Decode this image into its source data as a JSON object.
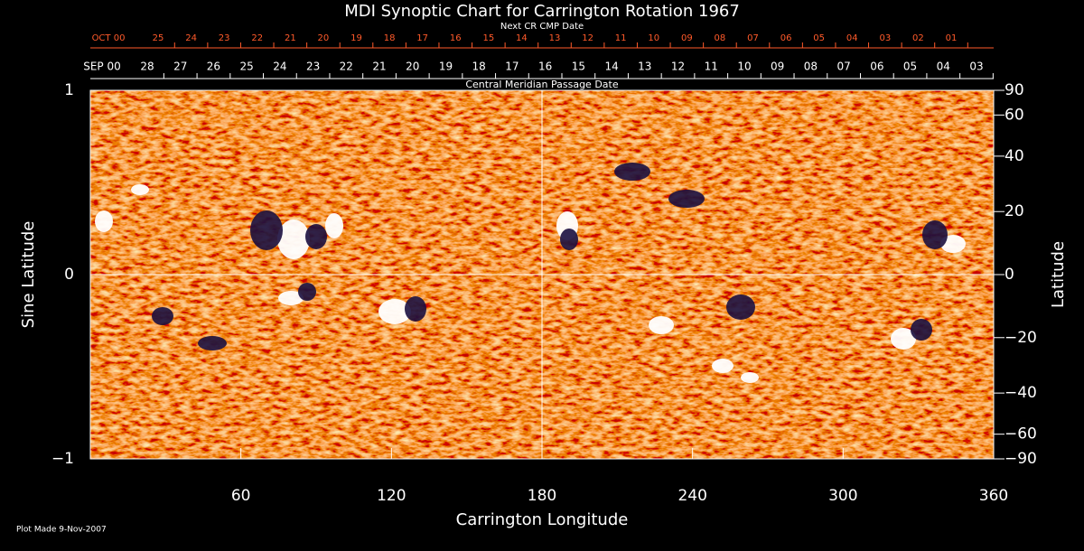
{
  "chart_data": {
    "type": "synoptic-map",
    "title": "MDI Synoptic Chart for Carrington Rotation 1967",
    "xlabel": "Carrington Longitude",
    "ylabel": "Sine Latitude",
    "y2label": "Latitude",
    "xlim": [
      0,
      360
    ],
    "xticks": [
      60,
      120,
      180,
      240,
      300,
      360
    ],
    "ylim": [
      -1,
      1
    ],
    "yticks": [
      -1,
      0,
      1
    ],
    "y2scale": "sine",
    "y2ticks": [
      90,
      60,
      40,
      20,
      0,
      -20,
      -40,
      -60,
      -90
    ],
    "reference_lines": {
      "x": 180,
      "y": 0
    },
    "top_axis": {
      "label": "Central Meridian Passage Date",
      "month": "SEP 00",
      "days": [
        "28",
        "27",
        "26",
        "25",
        "24",
        "23",
        "22",
        "21",
        "20",
        "19",
        "18",
        "17",
        "16",
        "15",
        "14",
        "13",
        "12",
        "11",
        "10",
        "09",
        "08",
        "07",
        "06",
        "05",
        "04",
        "03"
      ],
      "color": "#ffffff"
    },
    "next_axis": {
      "label": "Next CR CMP Date",
      "month": "OCT 00",
      "days": [
        "25",
        "24",
        "23",
        "22",
        "21",
        "20",
        "19",
        "18",
        "17",
        "16",
        "15",
        "14",
        "13",
        "12",
        "11",
        "10",
        "09",
        "08",
        "07",
        "06",
        "05",
        "04",
        "03",
        "02",
        "01"
      ],
      "color": "#ff5a2a"
    },
    "footer": "Plot Made  9-Nov-2007"
  }
}
